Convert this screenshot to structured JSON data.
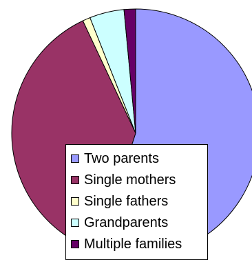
{
  "chart_data": {
    "type": "pie",
    "title": "",
    "categories": [
      "Two parents",
      "Single mothers",
      "Single fathers",
      "Grandparents",
      "Multiple families"
    ],
    "values": [
      55.0,
      38.0,
      1.0,
      4.5,
      1.5
    ],
    "colors": [
      "#9999ff",
      "#993366",
      "#ffffcc",
      "#ccffff",
      "#660066"
    ],
    "legend": "overlapping-bottom-center",
    "start": "top",
    "direction": "clockwise"
  }
}
